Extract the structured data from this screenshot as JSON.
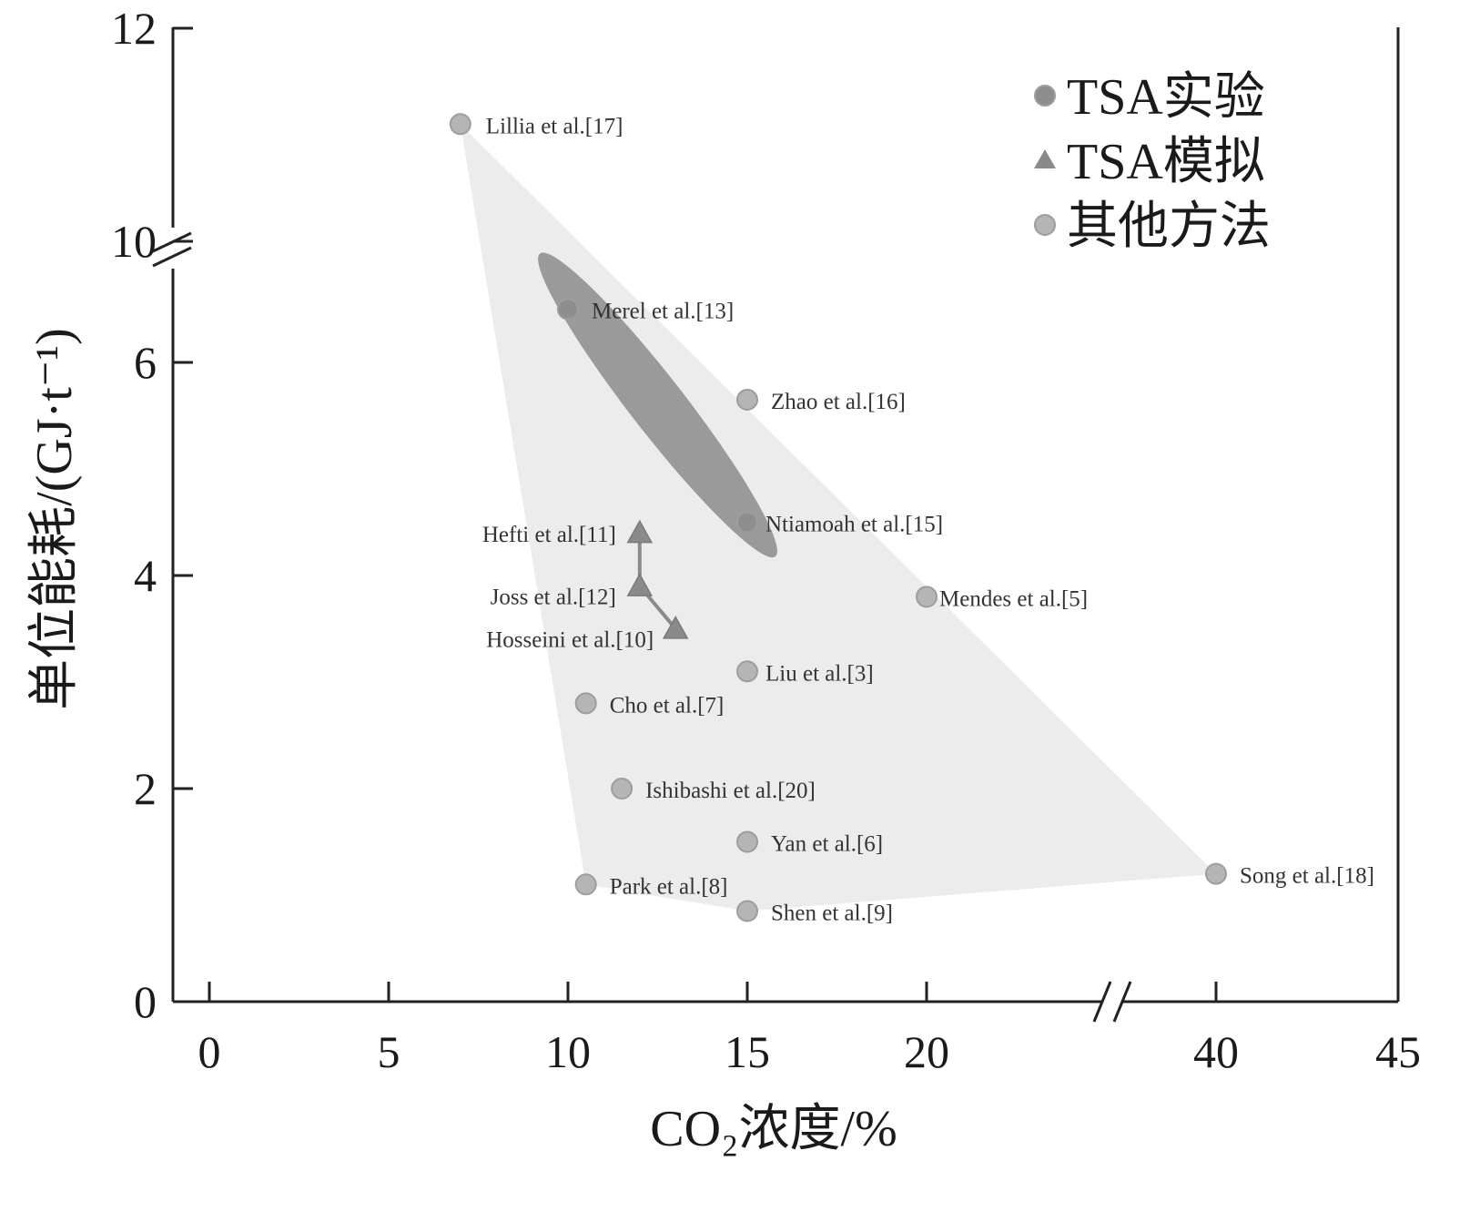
{
  "chart_data": {
    "type": "scatter",
    "xlabel": "CO₂浓度/%",
    "ylabel": "单位能耗/(GJ·t⁻¹)",
    "xlim": [
      -1,
      45
    ],
    "ylim": [
      0,
      12
    ],
    "x_axis_break": [
      22,
      38
    ],
    "y_axis_break": [
      7,
      9.5
    ],
    "x_ticks": [
      0,
      5,
      10,
      15,
      20,
      40,
      45
    ],
    "y_ticks": [
      0,
      2,
      4,
      6,
      10,
      12
    ],
    "grid": false,
    "legend_position": "top-right",
    "series": [
      {
        "name": "TSA实验",
        "marker": "circle",
        "color": "#8e8e8e",
        "points": [
          {
            "x": 10,
            "y": 6.5,
            "label": "Merel et al.[13]"
          },
          {
            "x": 15,
            "y": 4.5,
            "label": "Ntiamoah et al.[15]"
          }
        ]
      },
      {
        "name": "TSA模拟",
        "marker": "triangle",
        "color": "#8a8a8a",
        "points": [
          {
            "x": 12,
            "y": 4.4,
            "label": "Hefti et al.[11]"
          },
          {
            "x": 12,
            "y": 3.9,
            "label": "Joss et al.[12]"
          },
          {
            "x": 13,
            "y": 3.5,
            "label": "Hosseini et al.[10]"
          }
        ]
      },
      {
        "name": "其他方法",
        "marker": "circle",
        "color": "#b5b5b5",
        "points": [
          {
            "x": 7,
            "y": 11.1,
            "label": "Lillia et al.[17]"
          },
          {
            "x": 15,
            "y": 5.65,
            "label": "Zhao et al.[16]"
          },
          {
            "x": 20,
            "y": 3.8,
            "label": "Mendes et al.[5]"
          },
          {
            "x": 15,
            "y": 3.1,
            "label": "Liu et al.[3]"
          },
          {
            "x": 10.5,
            "y": 2.8,
            "label": "Cho et al.[7]"
          },
          {
            "x": 11.5,
            "y": 2.0,
            "label": "Ishibashi et al.[20]"
          },
          {
            "x": 15,
            "y": 1.5,
            "label": "Yan et al.[6]"
          },
          {
            "x": 40,
            "y": 1.2,
            "label": "Song et al.[18]"
          },
          {
            "x": 10.5,
            "y": 1.1,
            "label": "Park et al.[8]"
          },
          {
            "x": 15,
            "y": 0.85,
            "label": "Shen et al.[9]"
          }
        ]
      }
    ],
    "shaded_region_vertices": [
      {
        "x": 7,
        "y": 11.1
      },
      {
        "x": 40,
        "y": 1.2
      },
      {
        "x": 15,
        "y": 0.85
      },
      {
        "x": 10.5,
        "y": 1.1
      }
    ],
    "highlight_ellipse_through": [
      {
        "x": 9.5,
        "y": 6.9
      },
      {
        "x": 15.5,
        "y": 4.3
      }
    ]
  }
}
